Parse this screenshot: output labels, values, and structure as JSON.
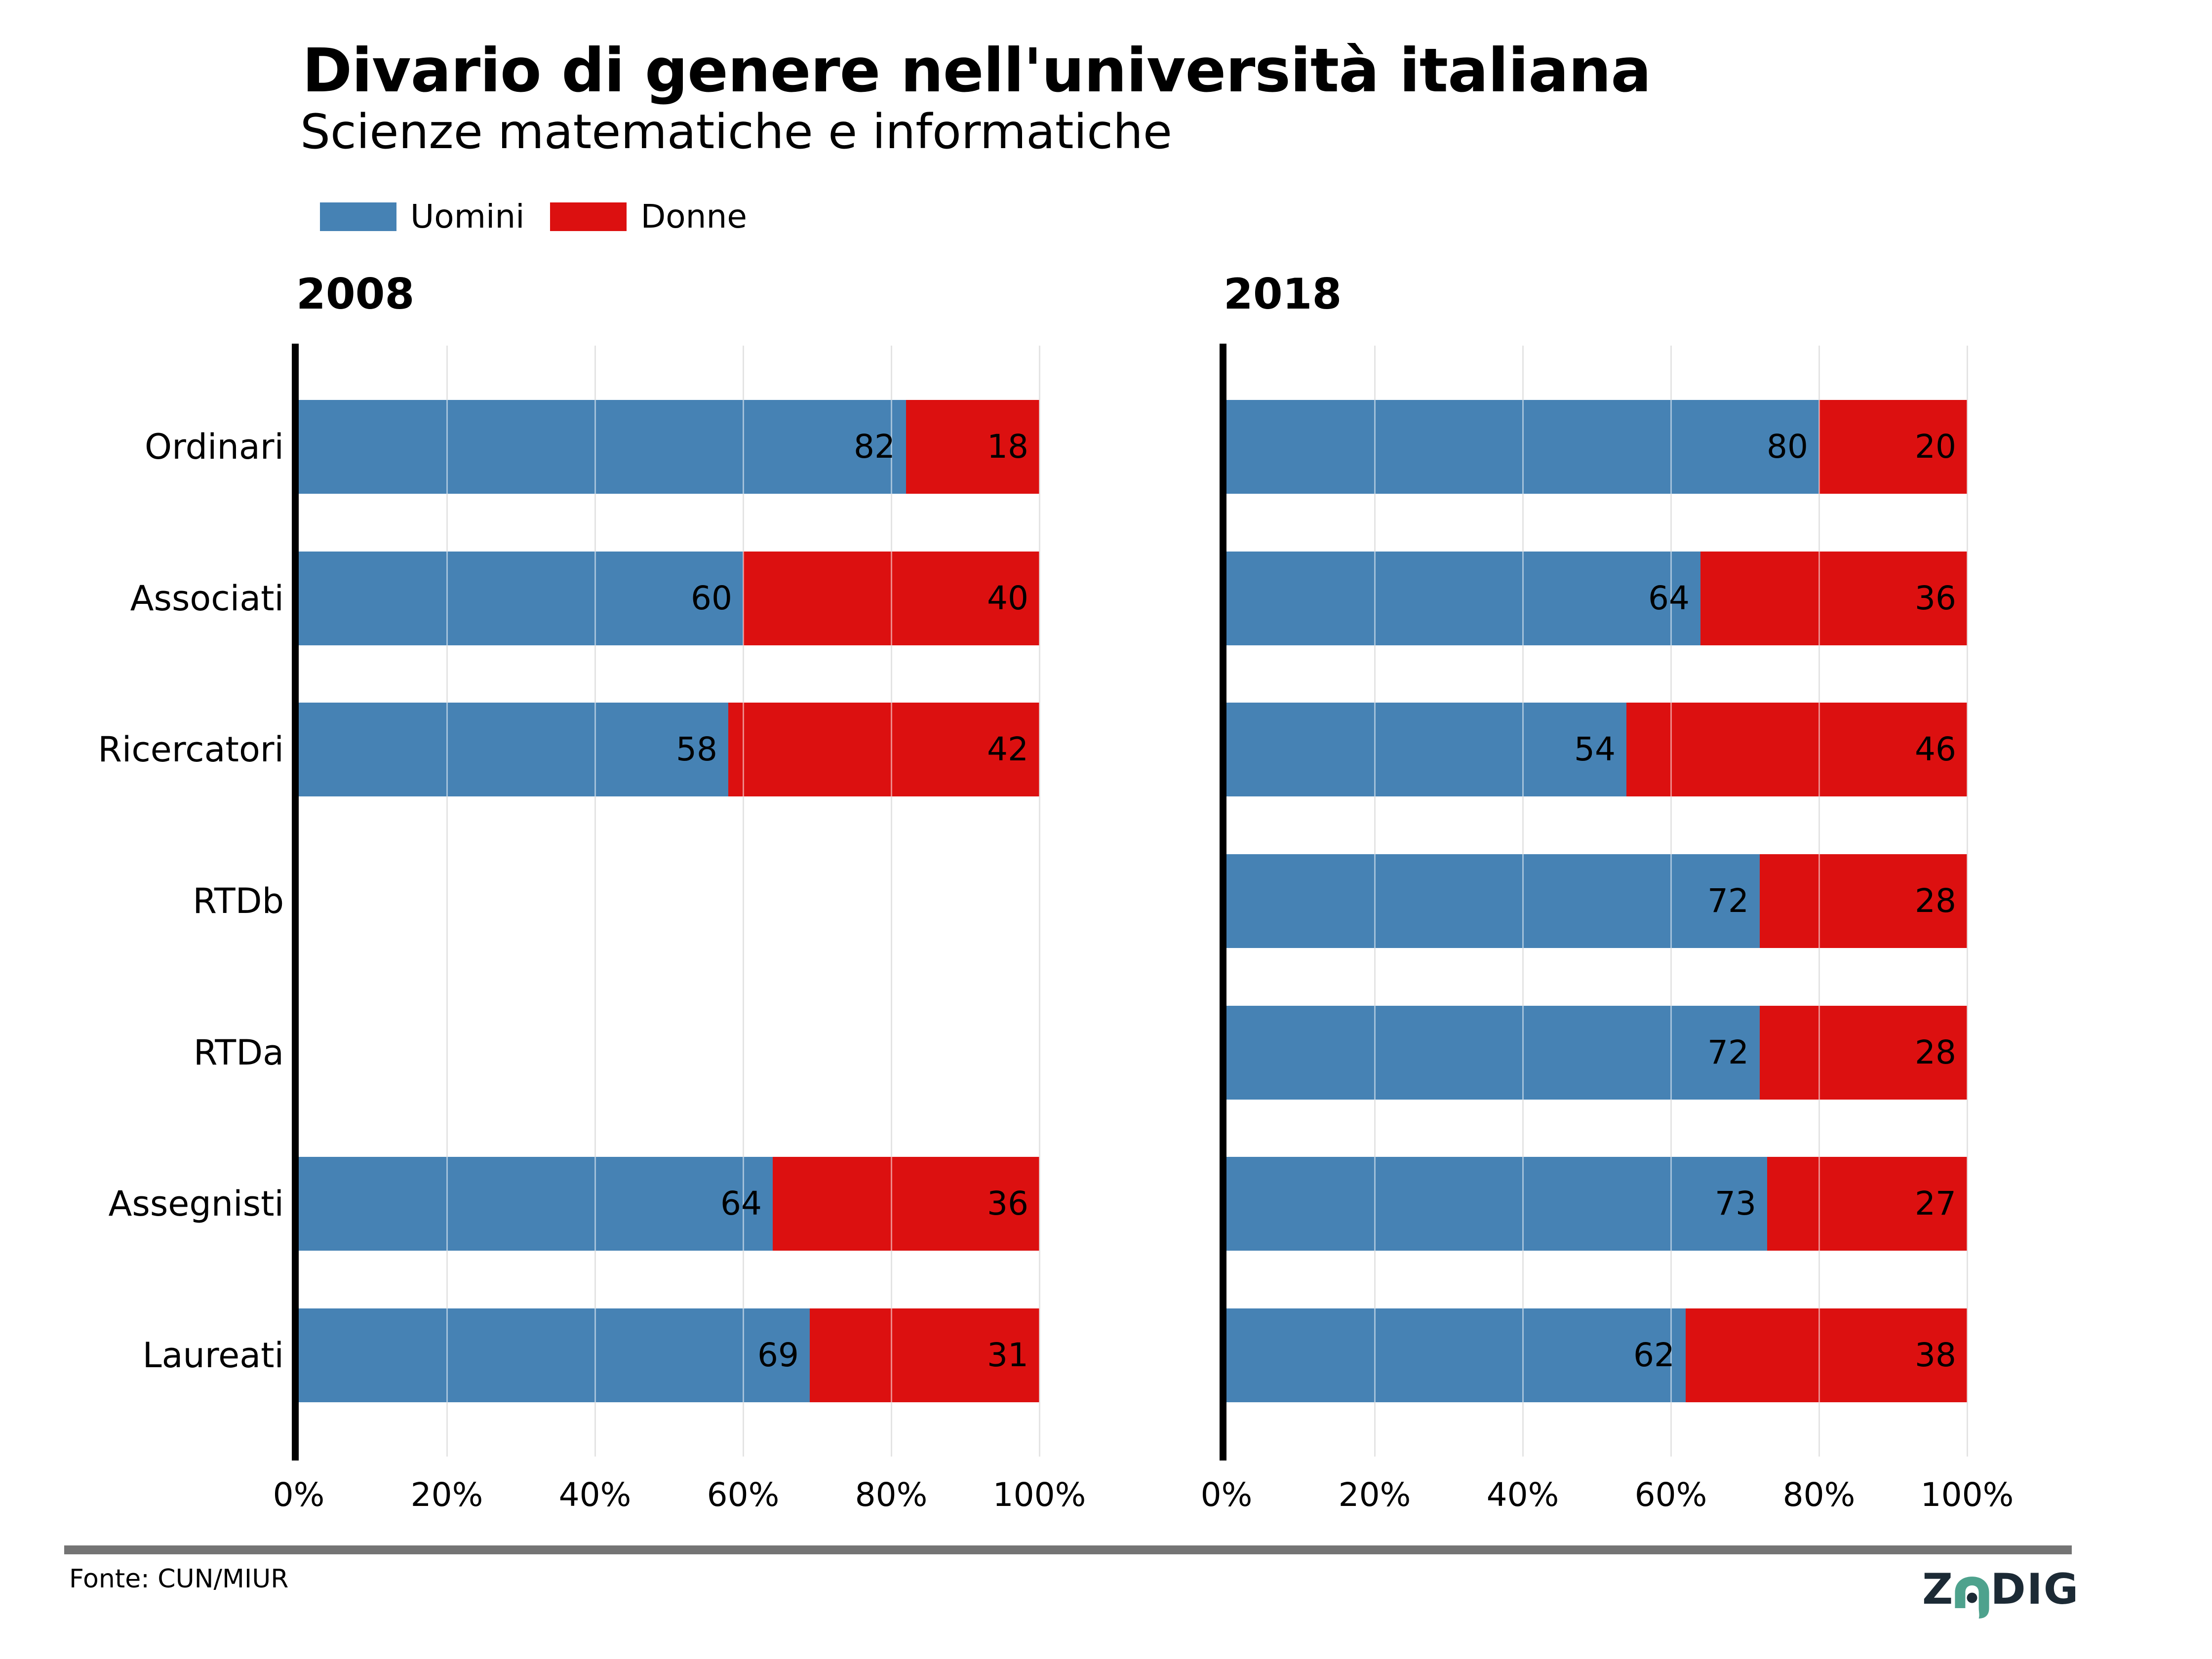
{
  "header": {
    "title": "Divario di genere nell'università italiana",
    "subtitle": "Scienze matematiche e informatiche"
  },
  "legend": {
    "items": [
      {
        "label": "Uomini",
        "color": "#4682b4"
      },
      {
        "label": "Donne",
        "color": "#dc1010"
      }
    ]
  },
  "chart_data": {
    "type": "bar",
    "orientation": "horizontal",
    "stacked": true,
    "unit": "%",
    "xlim": [
      0,
      100
    ],
    "x_ticks": [
      "0%",
      "20%",
      "40%",
      "60%",
      "80%",
      "100%"
    ],
    "x_tick_values": [
      0,
      20,
      40,
      60,
      80,
      100
    ],
    "grid": "vertical",
    "legend_position": "top-left",
    "categories": [
      "Ordinari",
      "Associati",
      "Ricercatori",
      "RTDb",
      "RTDa",
      "Assegnisti",
      "Laureati"
    ],
    "panels": [
      {
        "title": "2008",
        "series": [
          {
            "name": "Uomini",
            "color": "#4682b4",
            "values": [
              82,
              60,
              58,
              null,
              null,
              64,
              69
            ]
          },
          {
            "name": "Donne",
            "color": "#dc1010",
            "values": [
              18,
              40,
              42,
              null,
              null,
              36,
              31
            ]
          }
        ]
      },
      {
        "title": "2018",
        "series": [
          {
            "name": "Uomini",
            "color": "#4682b4",
            "values": [
              80,
              64,
              54,
              72,
              72,
              73,
              62
            ]
          },
          {
            "name": "Donne",
            "color": "#dc1010",
            "values": [
              20,
              36,
              46,
              28,
              28,
              27,
              38
            ]
          }
        ]
      }
    ]
  },
  "footer": {
    "source": "Fonte: CUN/MIUR",
    "brand": {
      "z": "Z",
      "dig": "DIG",
      "navy": "#1c2a35",
      "teal": "#4ea28d"
    }
  },
  "colors": {
    "uomini": "#4682b4",
    "donne": "#dc1010",
    "gridline": "#c8c8c8",
    "axis": "#000000",
    "footer_rule": "#747474"
  }
}
